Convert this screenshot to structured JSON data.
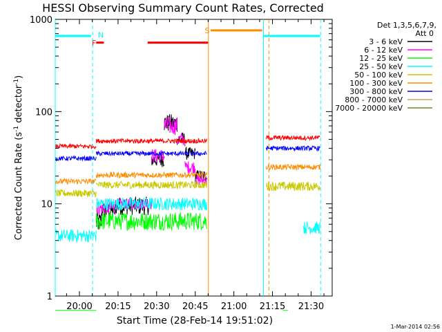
{
  "chart_data": {
    "type": "line",
    "title": "HESSI Observing Summary Count Rates, Corrected",
    "xlabel": "Start Time (28-Feb-14 19:51:02)",
    "ylabel": "Corrected Count Rate (s⁻¹ detector⁻¹)",
    "ylabel_main": "Corrected Count Rate (s",
    "ylabel_exp1": "-1",
    "ylabel_mid": " detector",
    "ylabel_exp2": "-1",
    "ylabel_end": ")",
    "yscale": "log",
    "ylim": [
      1,
      1000
    ],
    "xlim_minutes": [
      19.6,
      127.2
    ],
    "x_ticks": [
      {
        "minutes": 29,
        "label": "20:00"
      },
      {
        "minutes": 44,
        "label": "20:15"
      },
      {
        "minutes": 59,
        "label": "20:30"
      },
      {
        "minutes": 74,
        "label": "20:45"
      },
      {
        "minutes": 89,
        "label": "21:00"
      },
      {
        "minutes": 104,
        "label": "21:15"
      },
      {
        "minutes": 119,
        "label": "21:30"
      }
    ],
    "y_ticks": [
      {
        "value": 1,
        "label": "1"
      },
      {
        "value": 10,
        "label": "10"
      },
      {
        "value": 100,
        "label": "100"
      },
      {
        "value": 1000,
        "label": "1000"
      }
    ],
    "legend": {
      "header1": "Det 1,3,5,6,7,9,",
      "header2": "Att 0",
      "placement": "right"
    },
    "series": [
      {
        "name": "3 - 6 keV",
        "color": "#000000",
        "segments": [
          {
            "t0": 35.5,
            "t1": 37.5,
            "base": 6.3,
            "noise": 0.12
          },
          {
            "t0": 37.5,
            "t1": 43,
            "base": 8.5,
            "noise": 0.1
          },
          {
            "t0": 43,
            "t1": 57,
            "base": 9.5,
            "noise": 0.1
          },
          {
            "t0": 57,
            "t1": 62,
            "base": 30,
            "noise": 0.08
          },
          {
            "t0": 62,
            "t1": 67,
            "base": 75,
            "noise": 0.1
          },
          {
            "t0": 67,
            "t1": 70,
            "base": 50,
            "noise": 0.08
          },
          {
            "t0": 70,
            "t1": 74,
            "base": 35,
            "noise": 0.07
          },
          {
            "t0": 74,
            "t1": 78.5,
            "base": 20,
            "noise": 0.07
          }
        ]
      },
      {
        "name": "6 - 12 keV",
        "color": "#ff00ff",
        "segments": [
          {
            "t0": 35.5,
            "t1": 43,
            "base": 9,
            "noise": 0.08
          },
          {
            "t0": 43,
            "t1": 57,
            "base": 10,
            "noise": 0.06
          },
          {
            "t0": 57,
            "t1": 62,
            "base": 33,
            "noise": 0.08
          },
          {
            "t0": 62,
            "t1": 67,
            "base": 70,
            "noise": 0.1
          },
          {
            "t0": 67,
            "t1": 70,
            "base": 50,
            "noise": 0.08
          },
          {
            "t0": 70,
            "t1": 74,
            "base": 25,
            "noise": 0.07
          },
          {
            "t0": 74,
            "t1": 78.5,
            "base": 18,
            "noise": 0.06
          }
        ]
      },
      {
        "name": "12 - 25 keV",
        "color": "#00ff00",
        "segments": [
          {
            "t0": 19.6,
            "t1": 35.5,
            "base": 0.7,
            "noise": 0.0
          },
          {
            "t0": 35.5,
            "t1": 78.5,
            "base": 6.5,
            "noise": 0.1
          },
          {
            "t0": 108,
            "t1": 110,
            "base": 0.7,
            "noise": 0.0
          }
        ]
      },
      {
        "name": "25 - 50 keV",
        "color": "#00ffff",
        "segments": [
          {
            "t0": 19.6,
            "t1": 35.5,
            "base": 4.5,
            "noise": 0.07
          },
          {
            "t0": 35.5,
            "t1": 78.5,
            "base": 10,
            "noise": 0.07
          },
          {
            "t0": 116,
            "t1": 122.5,
            "base": 5.5,
            "noise": 0.07
          }
        ]
      },
      {
        "name": "50 - 100 keV",
        "color": "#c8c800",
        "segments": [
          {
            "t0": 19.6,
            "t1": 35.5,
            "base": 13,
            "noise": 0.04
          },
          {
            "t0": 35.5,
            "t1": 78.5,
            "base": 16,
            "noise": 0.04
          },
          {
            "t0": 101.5,
            "t1": 122.5,
            "base": 15.5,
            "noise": 0.05
          }
        ]
      },
      {
        "name": "100 - 300 keV",
        "color": "#ff8c00",
        "segments": [
          {
            "t0": 19.6,
            "t1": 35.5,
            "base": 17.5,
            "noise": 0.03
          },
          {
            "t0": 35.5,
            "t1": 78.5,
            "base": 20.5,
            "noise": 0.03
          },
          {
            "t0": 101.5,
            "t1": 122.5,
            "base": 25,
            "noise": 0.03
          }
        ]
      },
      {
        "name": "300 - 800 keV",
        "color": "#0000ff",
        "segments": [
          {
            "t0": 19.6,
            "t1": 35.5,
            "base": 31,
            "noise": 0.025
          },
          {
            "t0": 35.5,
            "t1": 78.5,
            "base": 35,
            "noise": 0.025
          },
          {
            "t0": 101.5,
            "t1": 122.5,
            "base": 40,
            "noise": 0.025
          }
        ]
      },
      {
        "name": "800 - 7000 keV",
        "color": "#d2a050",
        "segments": []
      },
      {
        "name": "7000 - 20000 keV",
        "color": "#6b8e23",
        "segments": []
      },
      {
        "name": "",
        "color": "#ff0000",
        "segments": [
          {
            "t0": 19.6,
            "t1": 35.5,
            "base": 42,
            "noise": 0.025
          },
          {
            "t0": 35.5,
            "t1": 78.5,
            "base": 48,
            "noise": 0.025
          },
          {
            "t0": 101.5,
            "t1": 122.5,
            "base": 52,
            "noise": 0.025
          }
        ]
      }
    ],
    "flags": [
      {
        "label": "",
        "color": "#00ffff",
        "t0": 19.6,
        "t1": 33.5,
        "value": 660
      },
      {
        "label": "",
        "color": "#00ffff",
        "t0": 100.5,
        "t1": 122.5,
        "value": 660
      },
      {
        "label": "F",
        "color": "#ff0000",
        "t0": 35.5,
        "t1": 38.5,
        "value": 560
      },
      {
        "label": "",
        "color": "#ff0000",
        "t0": 55.5,
        "t1": 79,
        "value": 560
      },
      {
        "label": "S",
        "color": "#ff8c00",
        "t0": 80,
        "t1": 100,
        "value": 760
      }
    ],
    "flag_labels": [
      {
        "text": "N",
        "color": "#00ffff",
        "minutes": 36.2,
        "value": 680
      },
      {
        "text": "F",
        "color": "#ff0000",
        "minutes": 33.8,
        "value": 555
      },
      {
        "text": "S",
        "color": "#ff8c00",
        "minutes": 77.7,
        "value": 760
      }
    ],
    "vertical_markers": [
      {
        "minutes": 19.6,
        "color": "#00ffff",
        "style": "solid"
      },
      {
        "minutes": 34.1,
        "color": "#00ffff",
        "style": "dashed"
      },
      {
        "minutes": 79.1,
        "color": "#ff8c00",
        "style": "solid"
      },
      {
        "minutes": 100.5,
        "color": "#00ffff",
        "style": "solid"
      },
      {
        "minutes": 102.6,
        "color": "#ff8c00",
        "style": "dashed"
      },
      {
        "minutes": 122.7,
        "color": "#00ffff",
        "style": "dashed"
      }
    ]
  },
  "footer": {
    "timestamp": "1-Mar-2014 02:56"
  }
}
